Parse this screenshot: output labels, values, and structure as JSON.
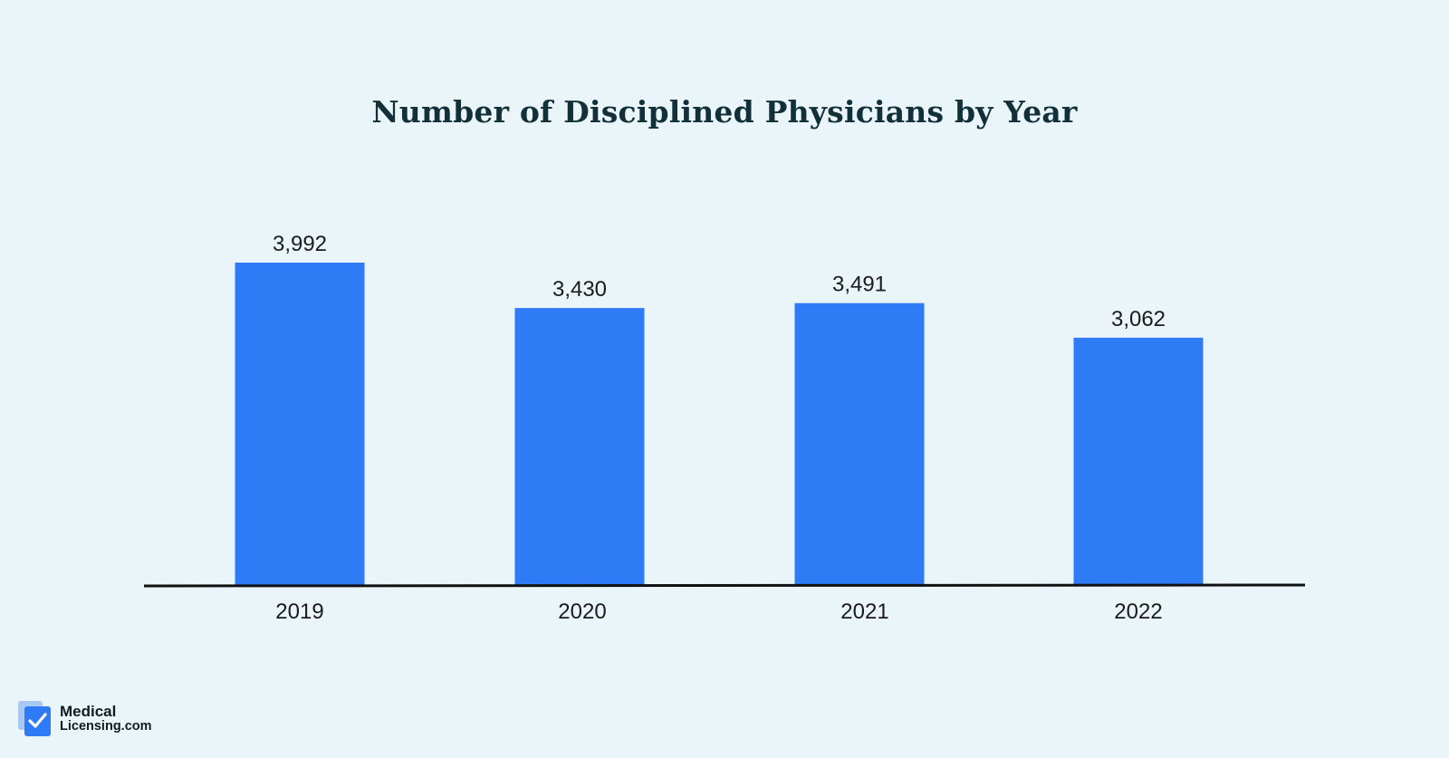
{
  "chart_data": {
    "type": "bar",
    "title": "Number of Disciplined Physicians by Year",
    "categories": [
      "2019",
      "2020",
      "2021",
      "2022"
    ],
    "values": [
      3992,
      3430,
      3491,
      3062
    ],
    "value_labels": [
      "3,992",
      "3,430",
      "3,491",
      "3,062"
    ],
    "xlabel": "",
    "ylabel": "",
    "ylim": [
      0,
      3992
    ],
    "grid": false,
    "legend": "none",
    "bar_color": "#2f7bf5"
  },
  "brand": {
    "line1": "Medical",
    "line2": "Licensing.com",
    "icon": "checkmark-document-icon"
  },
  "colors": {
    "background": "#eaf5f9",
    "title": "#12303a",
    "axis": "#111111"
  }
}
